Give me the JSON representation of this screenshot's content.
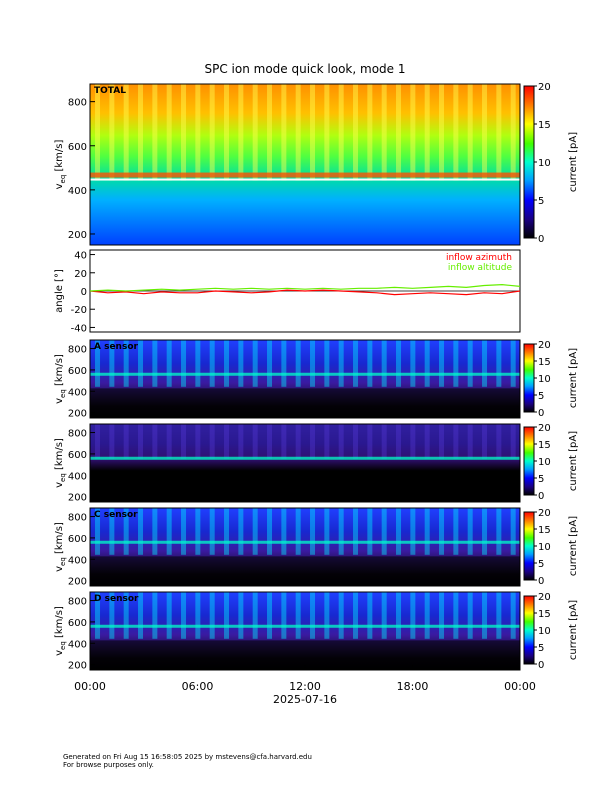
{
  "title": "SPC ion mode quick look, mode 1",
  "chart_data": [
    {
      "type": "heatmap",
      "panel": "total",
      "label": "TOTAL",
      "ylabel_main": "v",
      "ylabel_sub": "eq",
      "ylabel_unit": "[km/s]",
      "yticks": [
        200,
        400,
        600,
        800
      ],
      "ylim": [
        150,
        880
      ],
      "colorbar_label": "current [pA]",
      "colorbar_ticks": [
        0,
        5,
        10,
        15,
        20
      ],
      "colorbar_range": [
        0,
        20
      ]
    },
    {
      "type": "line",
      "panel": "angle",
      "ylabel": "angle [°]",
      "yticks": [
        -40,
        -20,
        0,
        20,
        40
      ],
      "ylim": [
        -45,
        45
      ],
      "series": [
        {
          "name": "inflow azimuth",
          "color": "#ff0000",
          "x": [
            0,
            1,
            2,
            3,
            4,
            5,
            6,
            7,
            8,
            9,
            10,
            11,
            12,
            13,
            14,
            15,
            16,
            17,
            18,
            19,
            20,
            21,
            22,
            23,
            24
          ],
          "values": [
            0,
            -2,
            -1,
            -3,
            -1,
            -2,
            -2,
            0,
            -1,
            -2,
            -1,
            1,
            0,
            1,
            0,
            -1,
            -2,
            -4,
            -3,
            -2,
            -3,
            -4,
            -2,
            -3,
            0
          ]
        },
        {
          "name": "inflow altitude",
          "color": "#66ee00",
          "x": [
            0,
            1,
            2,
            3,
            4,
            5,
            6,
            7,
            8,
            9,
            10,
            11,
            12,
            13,
            14,
            15,
            16,
            17,
            18,
            19,
            20,
            21,
            22,
            23,
            24
          ],
          "values": [
            0,
            1,
            0,
            1,
            2,
            1,
            2,
            3,
            2,
            3,
            2,
            3,
            2,
            3,
            2,
            3,
            3,
            4,
            3,
            4,
            5,
            4,
            6,
            7,
            5
          ]
        }
      ]
    },
    {
      "type": "heatmap",
      "panel": "A",
      "label": "A sensor",
      "ylabel_main": "v",
      "ylabel_sub": "eq",
      "ylabel_unit": "[km/s]",
      "yticks": [
        200,
        400,
        600,
        800
      ],
      "ylim": [
        150,
        880
      ],
      "colorbar_label": "current [pA]",
      "colorbar_ticks": [
        0,
        5,
        10,
        15,
        20
      ],
      "colorbar_range": [
        0,
        20
      ]
    },
    {
      "type": "heatmap",
      "panel": "B",
      "label": "",
      "ylabel_main": "v",
      "ylabel_sub": "eq",
      "ylabel_unit": "[km/s]",
      "yticks": [
        200,
        400,
        600,
        800
      ],
      "ylim": [
        150,
        880
      ],
      "colorbar_label": "current [pA]",
      "colorbar_ticks": [
        0,
        5,
        10,
        15,
        20
      ],
      "colorbar_range": [
        0,
        20
      ]
    },
    {
      "type": "heatmap",
      "panel": "C",
      "label": "C sensor",
      "ylabel_main": "v",
      "ylabel_sub": "eq",
      "ylabel_unit": "[km/s]",
      "yticks": [
        200,
        400,
        600,
        800
      ],
      "ylim": [
        150,
        880
      ],
      "colorbar_label": "current [pA]",
      "colorbar_ticks": [
        0,
        5,
        10,
        15,
        20
      ],
      "colorbar_range": [
        0,
        20
      ]
    },
    {
      "type": "heatmap",
      "panel": "D",
      "label": "D sensor",
      "ylabel_main": "v",
      "ylabel_sub": "eq",
      "ylabel_unit": "[km/s]",
      "yticks": [
        200,
        400,
        600,
        800
      ],
      "ylim": [
        150,
        880
      ],
      "colorbar_label": "current [pA]",
      "colorbar_ticks": [
        0,
        5,
        10,
        15,
        20
      ],
      "colorbar_range": [
        0,
        20
      ]
    }
  ],
  "xaxis": {
    "ticks": [
      "00:00",
      "06:00",
      "12:00",
      "18:00",
      "00:00"
    ],
    "date": "2025-07-16"
  },
  "footer": {
    "line1": "Generated on Fri Aug 15 16:58:05 2025 by mstevens@cfa.harvard.edu",
    "line2": "For browse purposes only."
  }
}
